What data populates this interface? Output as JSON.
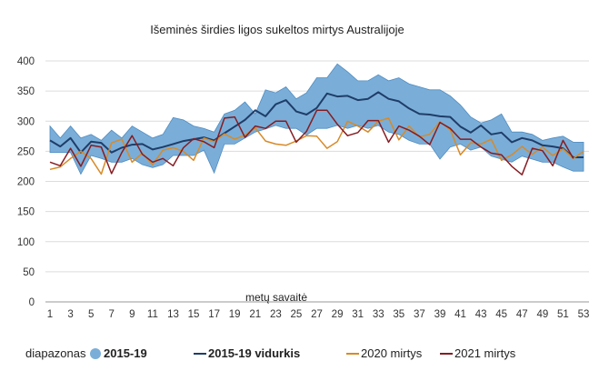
{
  "chart_data": {
    "type": "line",
    "title": "Išeminės širdies ligos sukeltos mirtys Australijoje",
    "xlabel": "metų savaitė",
    "ylabel": "",
    "ylim": [
      0,
      400
    ],
    "yticks": [
      0,
      50,
      100,
      150,
      200,
      250,
      300,
      350,
      400
    ],
    "x": [
      1,
      2,
      3,
      4,
      5,
      6,
      7,
      8,
      9,
      10,
      11,
      12,
      13,
      14,
      15,
      16,
      17,
      18,
      19,
      20,
      21,
      22,
      23,
      24,
      25,
      26,
      27,
      28,
      29,
      30,
      31,
      32,
      33,
      34,
      35,
      36,
      37,
      38,
      39,
      40,
      41,
      42,
      43,
      44,
      45,
      46,
      47,
      48,
      49,
      50,
      51,
      52,
      53
    ],
    "xticks": [
      1,
      3,
      5,
      7,
      9,
      11,
      13,
      15,
      17,
      19,
      21,
      23,
      25,
      27,
      29,
      31,
      33,
      35,
      37,
      39,
      41,
      43,
      45,
      47,
      49,
      51,
      53
    ],
    "grid": true,
    "legend": "bottom",
    "range": {
      "legend_prefix": "diapazonas",
      "name": "2015-19",
      "color": "#7aaed8",
      "edge_color": "#4f8cc2",
      "upper": [
        292,
        272,
        292,
        272,
        278,
        268,
        285,
        272,
        292,
        282,
        272,
        278,
        306,
        302,
        292,
        288,
        282,
        312,
        318,
        332,
        312,
        352,
        347,
        357,
        337,
        347,
        372,
        372,
        395,
        382,
        367,
        367,
        377,
        367,
        372,
        362,
        357,
        352,
        352,
        342,
        327,
        307,
        297,
        302,
        312,
        282,
        282,
        278,
        268,
        272,
        275,
        265,
        265
      ],
      "lower": [
        248,
        248,
        248,
        212,
        243,
        238,
        232,
        232,
        238,
        228,
        223,
        228,
        243,
        243,
        243,
        252,
        214,
        262,
        262,
        272,
        282,
        287,
        293,
        288,
        288,
        277,
        288,
        288,
        293,
        288,
        293,
        288,
        293,
        282,
        278,
        268,
        262,
        262,
        237,
        257,
        262,
        252,
        257,
        242,
        237,
        232,
        242,
        237,
        232,
        232,
        224,
        217,
        217
      ]
    },
    "series": [
      {
        "name": "2015-19 vidurkis",
        "color": "#1f3d68",
        "width": 2,
        "values": [
          268,
          258,
          272,
          248,
          266,
          264,
          248,
          256,
          261,
          262,
          253,
          257,
          262,
          267,
          270,
          273,
          268,
          280,
          291,
          302,
          318,
          308,
          328,
          335,
          316,
          311,
          322,
          346,
          341,
          342,
          335,
          337,
          348,
          337,
          333,
          321,
          312,
          311,
          308,
          307,
          291,
          281,
          293,
          278,
          281,
          265,
          272,
          268,
          260,
          258,
          255,
          240,
          240
        ]
      },
      {
        "name": "2020 mirtys",
        "color": "#d88a28",
        "width": 1.5,
        "values": [
          220,
          224,
          238,
          250,
          238,
          212,
          264,
          270,
          232,
          247,
          228,
          252,
          256,
          250,
          235,
          272,
          266,
          279,
          270,
          277,
          289,
          267,
          262,
          260,
          267,
          276,
          275,
          255,
          266,
          300,
          292,
          282,
          300,
          305,
          269,
          292,
          274,
          278,
          299,
          286,
          244,
          264,
          262,
          270,
          235,
          244,
          258,
          245,
          257,
          243,
          254,
          238,
          250
        ]
      },
      {
        "name": "2021 mirtys",
        "color": "#861c22",
        "width": 1.5,
        "values": [
          232,
          226,
          255,
          225,
          260,
          257,
          213,
          248,
          276,
          245,
          232,
          238,
          226,
          256,
          271,
          266,
          256,
          305,
          307,
          273,
          292,
          288,
          300,
          300,
          265,
          283,
          318,
          318,
          295,
          276,
          281,
          301,
          301,
          265,
          292,
          285,
          275,
          261,
          298,
          288,
          270,
          270,
          257,
          247,
          244,
          225,
          211,
          255,
          251,
          226,
          268,
          238,
          null
        ]
      }
    ]
  }
}
